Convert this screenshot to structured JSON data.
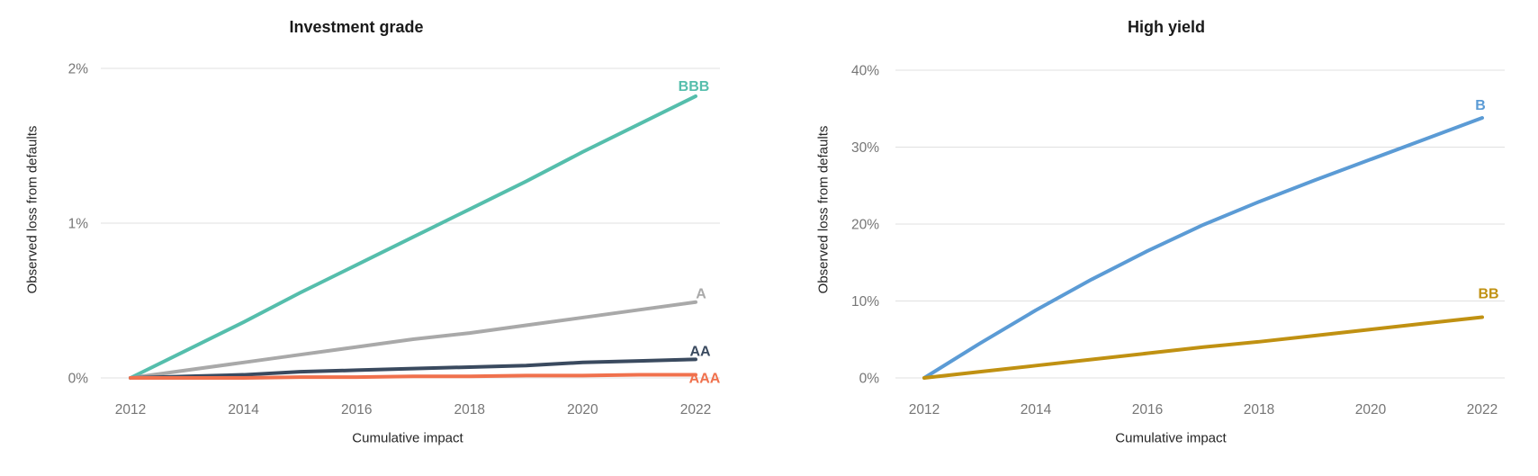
{
  "chart_data": [
    {
      "type": "line",
      "title": "Investment grade",
      "xlabel": "Cumulative impact",
      "ylabel": "Observed loss from defaults",
      "x": [
        2012,
        2013,
        2014,
        2015,
        2016,
        2017,
        2018,
        2019,
        2020,
        2021,
        2022
      ],
      "x_tick_labels": [
        "2012",
        "2014",
        "2016",
        "2018",
        "2020",
        "2022"
      ],
      "y_tick_labels": [
        "0%",
        "1%",
        "2%"
      ],
      "ylim": [
        0,
        2
      ],
      "grid": true,
      "legend_position": "end-of-line",
      "gridline_color": "#e0e0e0",
      "series": [
        {
          "name": "BBB",
          "color": "#55beac",
          "values": [
            0,
            0.18,
            0.36,
            0.55,
            0.73,
            0.91,
            1.09,
            1.27,
            1.46,
            1.64,
            1.82
          ]
        },
        {
          "name": "A",
          "color": "#a9a9a9",
          "values": [
            0,
            0.05,
            0.1,
            0.15,
            0.2,
            0.25,
            0.29,
            0.34,
            0.39,
            0.44,
            0.49
          ]
        },
        {
          "name": "AA",
          "color": "#3a4a5f",
          "values": [
            0,
            0.01,
            0.02,
            0.04,
            0.05,
            0.06,
            0.07,
            0.08,
            0.1,
            0.11,
            0.12
          ]
        },
        {
          "name": "AAA",
          "color": "#f0714d",
          "values": [
            0,
            0,
            0,
            0.005,
            0.005,
            0.01,
            0.01,
            0.015,
            0.015,
            0.02,
            0.02
          ]
        }
      ]
    },
    {
      "type": "line",
      "title": "High yield",
      "xlabel": "Cumulative impact",
      "ylabel": "Observed loss from defaults",
      "x": [
        2012,
        2013,
        2014,
        2015,
        2016,
        2017,
        2018,
        2019,
        2020,
        2021,
        2022
      ],
      "x_tick_labels": [
        "2012",
        "2014",
        "2016",
        "2018",
        "2020",
        "2022"
      ],
      "y_tick_labels": [
        "0%",
        "10%",
        "20%",
        "30%",
        "40%"
      ],
      "ylim": [
        0,
        40
      ],
      "grid": true,
      "legend_position": "end-of-line",
      "gridline_color": "#e0e0e0",
      "series": [
        {
          "name": "B",
          "color": "#5b9bd5",
          "values": [
            0,
            4.5,
            8.8,
            12.8,
            16.5,
            19.9,
            22.9,
            25.7,
            28.4,
            31.1,
            33.8
          ]
        },
        {
          "name": "BB",
          "color": "#c09112",
          "values": [
            0,
            0.8,
            1.6,
            2.4,
            3.2,
            4.0,
            4.7,
            5.5,
            6.3,
            7.1,
            7.9
          ]
        }
      ]
    }
  ]
}
